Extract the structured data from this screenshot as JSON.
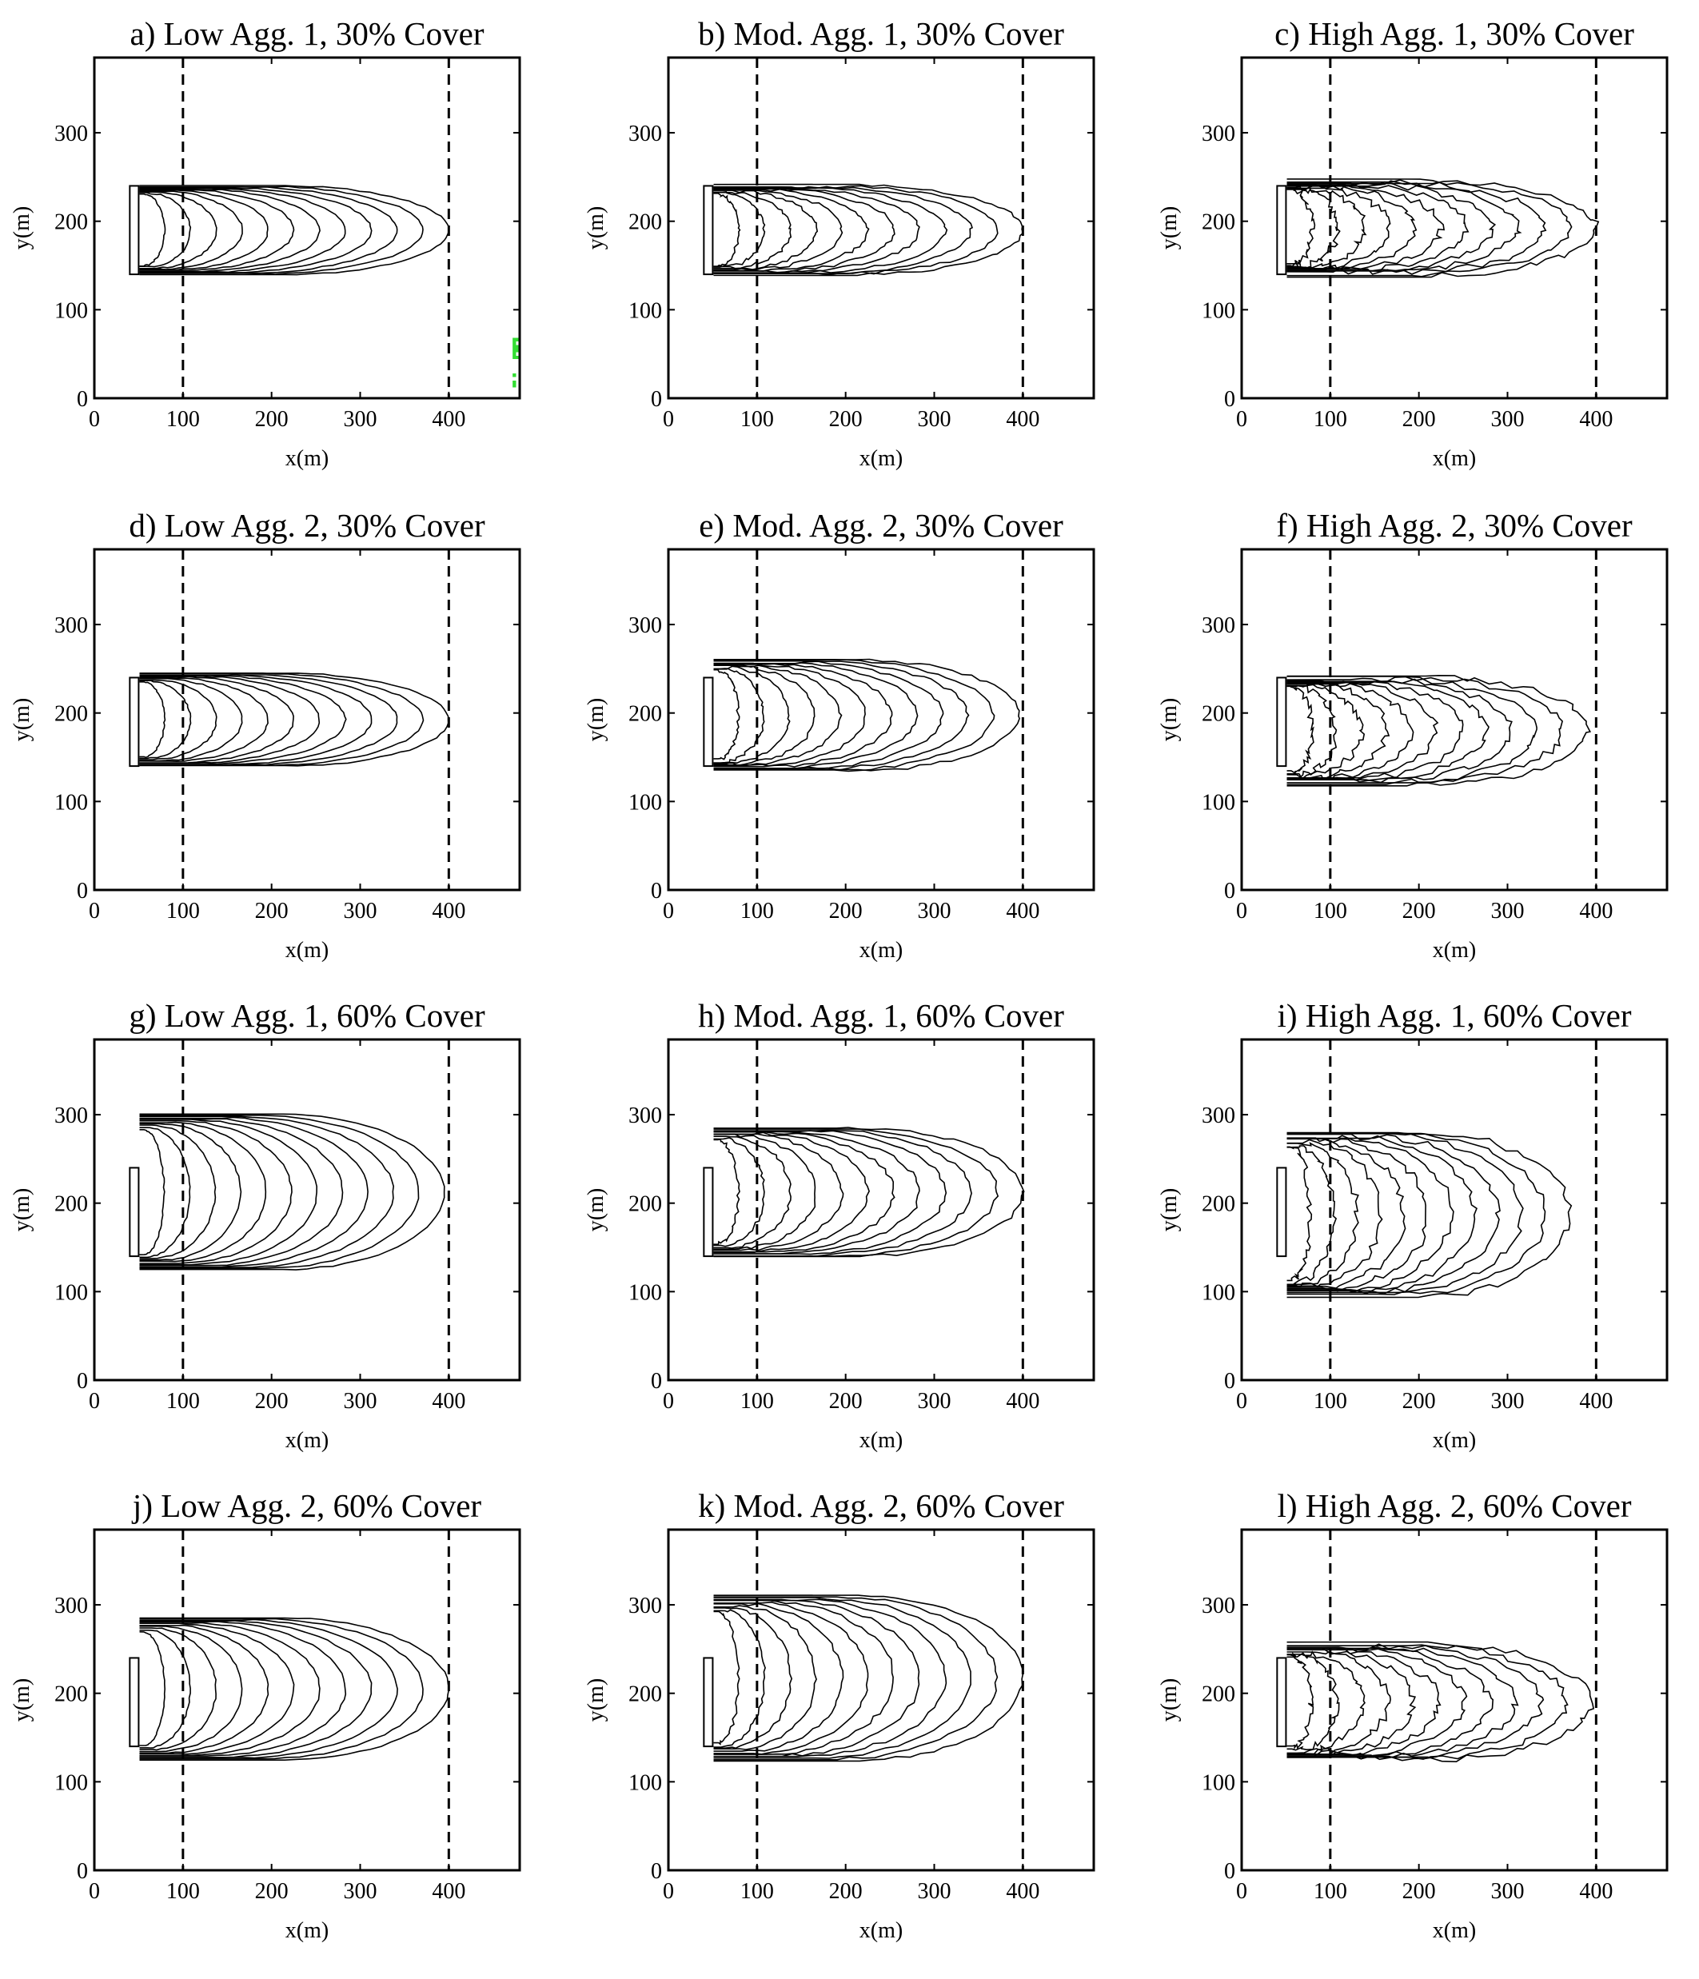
{
  "chart_data": [
    {
      "type": "heatmap",
      "panel_id": "a",
      "title": "a) Low Agg. 1, 30% Cover",
      "xlabel": "x(m)",
      "ylabel": "y(m)",
      "xlim": [
        0,
        480
      ],
      "ylim": [
        0,
        385
      ],
      "xticks": [
        0,
        100,
        200,
        300,
        400
      ],
      "yticks": [
        0,
        100,
        200,
        300
      ],
      "dashed_lines_x": [
        100,
        400
      ],
      "cover_fraction": 0.3,
      "aggregation": "low",
      "fire_source": {
        "x": [
          40,
          50
        ],
        "y": [
          140,
          240
        ]
      },
      "contours": {
        "count": 12,
        "x_extent": [
          45,
          400
        ],
        "y_extent": [
          140,
          240
        ]
      },
      "colors": {
        "vegetation": "#33dd33",
        "background": "#ffffff",
        "contour": "#000000"
      }
    },
    {
      "type": "heatmap",
      "panel_id": "b",
      "title": "b) Mod. Agg. 1, 30% Cover",
      "xlabel": "x(m)",
      "ylabel": "y(m)",
      "xlim": [
        0,
        480
      ],
      "ylim": [
        0,
        385
      ],
      "xticks": [
        0,
        100,
        200,
        300,
        400
      ],
      "yticks": [
        0,
        100,
        200,
        300
      ],
      "dashed_lines_x": [
        100,
        400
      ],
      "cover_fraction": 0.3,
      "aggregation": "mod",
      "fire_source": {
        "x": [
          40,
          50
        ],
        "y": [
          140,
          240
        ]
      },
      "contours": {
        "count": 12,
        "x_extent": [
          45,
          400
        ],
        "y_extent": [
          140,
          240
        ]
      },
      "colors": {
        "vegetation": "#33dd33",
        "background": "#ffffff",
        "contour": "#000000"
      }
    },
    {
      "type": "heatmap",
      "panel_id": "c",
      "title": "c) High Agg. 1, 30% Cover",
      "xlabel": "x(m)",
      "ylabel": "y(m)",
      "xlim": [
        0,
        480
      ],
      "ylim": [
        0,
        385
      ],
      "xticks": [
        0,
        100,
        200,
        300,
        400
      ],
      "yticks": [
        0,
        100,
        200,
        300
      ],
      "dashed_lines_x": [
        100,
        400
      ],
      "cover_fraction": 0.3,
      "aggregation": "high",
      "fire_source": {
        "x": [
          40,
          50
        ],
        "y": [
          140,
          240
        ]
      },
      "contours": {
        "count": 12,
        "x_extent": [
          45,
          400
        ],
        "y_extent": [
          140,
          245
        ]
      },
      "colors": {
        "vegetation": "#33dd33",
        "background": "#ffffff",
        "contour": "#000000"
      }
    },
    {
      "type": "heatmap",
      "panel_id": "d",
      "title": "d) Low Agg. 2, 30% Cover",
      "xlabel": "x(m)",
      "ylabel": "y(m)",
      "xlim": [
        0,
        480
      ],
      "ylim": [
        0,
        385
      ],
      "xticks": [
        0,
        100,
        200,
        300,
        400
      ],
      "yticks": [
        0,
        100,
        200,
        300
      ],
      "dashed_lines_x": [
        100,
        400
      ],
      "cover_fraction": 0.3,
      "aggregation": "low",
      "fire_source": {
        "x": [
          40,
          50
        ],
        "y": [
          140,
          240
        ]
      },
      "contours": {
        "count": 12,
        "x_extent": [
          45,
          400
        ],
        "y_extent": [
          140,
          245
        ]
      },
      "colors": {
        "vegetation": "#33dd33",
        "background": "#ffffff",
        "contour": "#000000"
      }
    },
    {
      "type": "heatmap",
      "panel_id": "e",
      "title": "e) Mod. Agg. 2, 30% Cover",
      "xlabel": "x(m)",
      "ylabel": "y(m)",
      "xlim": [
        0,
        480
      ],
      "ylim": [
        0,
        385
      ],
      "xticks": [
        0,
        100,
        200,
        300,
        400
      ],
      "yticks": [
        0,
        100,
        200,
        300
      ],
      "dashed_lines_x": [
        100,
        400
      ],
      "cover_fraction": 0.3,
      "aggregation": "mod",
      "fire_source": {
        "x": [
          40,
          50
        ],
        "y": [
          140,
          240
        ]
      },
      "contours": {
        "count": 12,
        "x_extent": [
          45,
          395
        ],
        "y_extent": [
          135,
          260
        ]
      },
      "colors": {
        "vegetation": "#33dd33",
        "background": "#ffffff",
        "contour": "#000000"
      }
    },
    {
      "type": "heatmap",
      "panel_id": "f",
      "title": "f) High Agg. 2, 30% Cover",
      "xlabel": "x(m)",
      "ylabel": "y(m)",
      "xlim": [
        0,
        480
      ],
      "ylim": [
        0,
        385
      ],
      "xticks": [
        0,
        100,
        200,
        300,
        400
      ],
      "yticks": [
        0,
        100,
        200,
        300
      ],
      "dashed_lines_x": [
        100,
        400
      ],
      "cover_fraction": 0.3,
      "aggregation": "high",
      "fire_source": {
        "x": [
          40,
          50
        ],
        "y": [
          140,
          240
        ]
      },
      "contours": {
        "count": 12,
        "x_extent": [
          45,
          390
        ],
        "y_extent": [
          120,
          240
        ]
      },
      "colors": {
        "vegetation": "#33dd33",
        "background": "#ffffff",
        "contour": "#000000"
      }
    },
    {
      "type": "heatmap",
      "panel_id": "g",
      "title": "g) Low Agg. 1, 60% Cover",
      "xlabel": "x(m)",
      "ylabel": "y(m)",
      "xlim": [
        0,
        480
      ],
      "ylim": [
        0,
        385
      ],
      "xticks": [
        0,
        100,
        200,
        300,
        400
      ],
      "yticks": [
        0,
        100,
        200,
        300
      ],
      "dashed_lines_x": [
        100,
        400
      ],
      "cover_fraction": 0.6,
      "aggregation": "low",
      "fire_source": {
        "x": [
          40,
          50
        ],
        "y": [
          140,
          240
        ]
      },
      "contours": {
        "count": 12,
        "x_extent": [
          45,
          395
        ],
        "y_extent": [
          125,
          300
        ]
      },
      "colors": {
        "vegetation": "#33dd33",
        "background": "#ffffff",
        "contour": "#000000"
      }
    },
    {
      "type": "heatmap",
      "panel_id": "h",
      "title": "h) Mod. Agg. 1, 60% Cover",
      "xlabel": "x(m)",
      "ylabel": "y(m)",
      "xlim": [
        0,
        480
      ],
      "ylim": [
        0,
        385
      ],
      "xticks": [
        0,
        100,
        200,
        300,
        400
      ],
      "yticks": [
        0,
        100,
        200,
        300
      ],
      "dashed_lines_x": [
        100,
        400
      ],
      "cover_fraction": 0.6,
      "aggregation": "mod",
      "fire_source": {
        "x": [
          40,
          50
        ],
        "y": [
          140,
          240
        ]
      },
      "contours": {
        "count": 12,
        "x_extent": [
          45,
          400
        ],
        "y_extent": [
          140,
          285
        ]
      },
      "colors": {
        "vegetation": "#33dd33",
        "background": "#ffffff",
        "contour": "#000000"
      }
    },
    {
      "type": "heatmap",
      "panel_id": "i",
      "title": "i) High Agg. 1, 60% Cover",
      "xlabel": "x(m)",
      "ylabel": "y(m)",
      "xlim": [
        0,
        480
      ],
      "ylim": [
        0,
        385
      ],
      "xticks": [
        0,
        100,
        200,
        300,
        400
      ],
      "yticks": [
        0,
        100,
        200,
        300
      ],
      "dashed_lines_x": [
        100,
        400
      ],
      "cover_fraction": 0.6,
      "aggregation": "high",
      "fire_source": {
        "x": [
          40,
          50
        ],
        "y": [
          140,
          240
        ]
      },
      "contours": {
        "count": 12,
        "x_extent": [
          45,
          370
        ],
        "y_extent": [
          95,
          280
        ]
      },
      "colors": {
        "vegetation": "#33dd33",
        "background": "#ffffff",
        "contour": "#000000"
      }
    },
    {
      "type": "heatmap",
      "panel_id": "j",
      "title": "j) Low Agg. 2, 60% Cover",
      "xlabel": "x(m)",
      "ylabel": "y(m)",
      "xlim": [
        0,
        480
      ],
      "ylim": [
        0,
        385
      ],
      "xticks": [
        0,
        100,
        200,
        300,
        400
      ],
      "yticks": [
        0,
        100,
        200,
        300
      ],
      "dashed_lines_x": [
        100,
        400
      ],
      "cover_fraction": 0.6,
      "aggregation": "low",
      "fire_source": {
        "x": [
          40,
          50
        ],
        "y": [
          140,
          240
        ]
      },
      "contours": {
        "count": 12,
        "x_extent": [
          45,
          400
        ],
        "y_extent": [
          125,
          285
        ]
      },
      "colors": {
        "vegetation": "#33dd33",
        "background": "#ffffff",
        "contour": "#000000"
      }
    },
    {
      "type": "heatmap",
      "panel_id": "k",
      "title": "k) Mod. Agg. 2, 60% Cover",
      "xlabel": "x(m)",
      "ylabel": "y(m)",
      "xlim": [
        0,
        480
      ],
      "ylim": [
        0,
        385
      ],
      "xticks": [
        0,
        100,
        200,
        300,
        400
      ],
      "yticks": [
        0,
        100,
        200,
        300
      ],
      "dashed_lines_x": [
        100,
        400
      ],
      "cover_fraction": 0.6,
      "aggregation": "mod",
      "fire_source": {
        "x": [
          40,
          50
        ],
        "y": [
          140,
          240
        ]
      },
      "contours": {
        "count": 12,
        "x_extent": [
          45,
          400
        ],
        "y_extent": [
          125,
          310
        ]
      },
      "colors": {
        "vegetation": "#33dd33",
        "background": "#ffffff",
        "contour": "#000000"
      }
    },
    {
      "type": "heatmap",
      "panel_id": "l",
      "title": "l) High Agg. 2, 60% Cover",
      "xlabel": "x(m)",
      "ylabel": "y(m)",
      "xlim": [
        0,
        480
      ],
      "ylim": [
        0,
        385
      ],
      "xticks": [
        0,
        100,
        200,
        300,
        400
      ],
      "yticks": [
        0,
        100,
        200,
        300
      ],
      "dashed_lines_x": [
        100,
        400
      ],
      "cover_fraction": 0.6,
      "aggregation": "high",
      "fire_source": {
        "x": [
          40,
          50
        ],
        "y": [
          140,
          240
        ]
      },
      "contours": {
        "count": 12,
        "x_extent": [
          45,
          395
        ],
        "y_extent": [
          125,
          255
        ]
      },
      "colors": {
        "vegetation": "#33dd33",
        "background": "#ffffff",
        "contour": "#000000"
      }
    }
  ]
}
